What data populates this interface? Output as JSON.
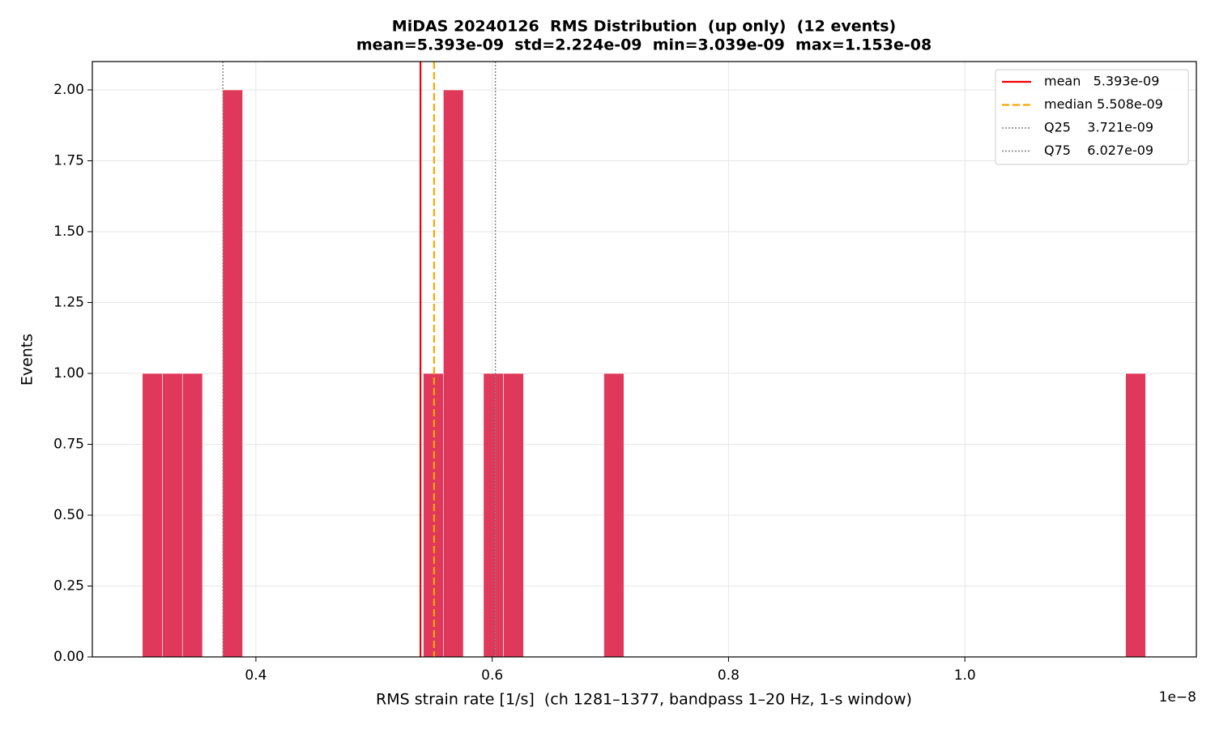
{
  "chart_data": {
    "type": "histogram",
    "title": "MiDAS 20240126  RMS Distribution  (up only)  (12 events)",
    "subtitle": "mean=5.393e-09  std=2.224e-09  min=3.039e-09  max=1.153e-08",
    "xlabel": "RMS strain rate [1/s]  (ch 1281–1377, bandpass 1–20 Hz, 1-s window)",
    "ylabel": "Events",
    "offset_text": "1e−8",
    "bins": [
      0.3039,
      0.32088,
      0.33786,
      0.35485,
      0.37183,
      0.38881,
      0.40579,
      0.42277,
      0.43976,
      0.45674,
      0.47372,
      0.4907,
      0.50768,
      0.52467,
      0.54165,
      0.55863,
      0.57561,
      0.59259,
      0.60958,
      0.62656,
      0.64354,
      0.66052,
      0.6775,
      0.69449,
      0.71147,
      0.72845,
      0.74543,
      0.76241,
      0.7794,
      0.79638,
      0.81336,
      0.83034,
      0.84732,
      0.86431,
      0.88129,
      0.89827,
      0.91525,
      0.93223,
      0.94922,
      0.9662,
      0.98318,
      1.00016,
      1.01714,
      1.03413,
      1.05111,
      1.06809,
      1.08507,
      1.10205,
      1.11904,
      1.13602,
      1.153
    ],
    "counts": [
      1,
      1,
      1,
      0,
      2,
      0,
      0,
      0,
      0,
      0,
      0,
      0,
      0,
      0,
      1,
      2,
      0,
      1,
      1,
      0,
      0,
      0,
      0,
      1,
      0,
      0,
      0,
      0,
      0,
      0,
      0,
      0,
      0,
      0,
      0,
      0,
      0,
      0,
      0,
      0,
      0,
      0,
      0,
      0,
      0,
      0,
      0,
      0,
      0,
      1
    ],
    "color": "#e0385a",
    "reference_lines": [
      {
        "name": "mean   5.393e-09",
        "value": 0.5393,
        "color": "#ee0000",
        "style": "solid"
      },
      {
        "name": "median 5.508e-09",
        "value": 0.5508,
        "color": "#ffa500",
        "style": "dashed"
      },
      {
        "name": "Q25    3.721e-09",
        "value": 0.3721,
        "color": "#808080",
        "style": "dotted"
      },
      {
        "name": "Q75    6.027e-09",
        "value": 0.6027,
        "color": "#808080",
        "style": "dotted"
      }
    ],
    "xlim": [
      0.2616,
      1.1959
    ],
    "ylim": [
      0,
      2.1
    ],
    "xticks": [
      0.4,
      0.6,
      0.8,
      {
        "value": 1,
        "label": "1.0"
      }
    ],
    "yticks": [
      {
        "value": 0,
        "label": "0.00"
      },
      {
        "value": 0.25,
        "label": "0.25"
      },
      {
        "value": 0.5,
        "label": "0.50"
      },
      {
        "value": 0.75,
        "label": "0.75"
      },
      {
        "value": 1,
        "label": "1.00"
      },
      {
        "value": 1.25,
        "label": "1.25"
      },
      {
        "value": 1.5,
        "label": "1.50"
      },
      {
        "value": 1.75,
        "label": "1.75"
      },
      {
        "value": 2,
        "label": "2.00"
      }
    ],
    "grid": true,
    "legend_loc": "upper right"
  }
}
